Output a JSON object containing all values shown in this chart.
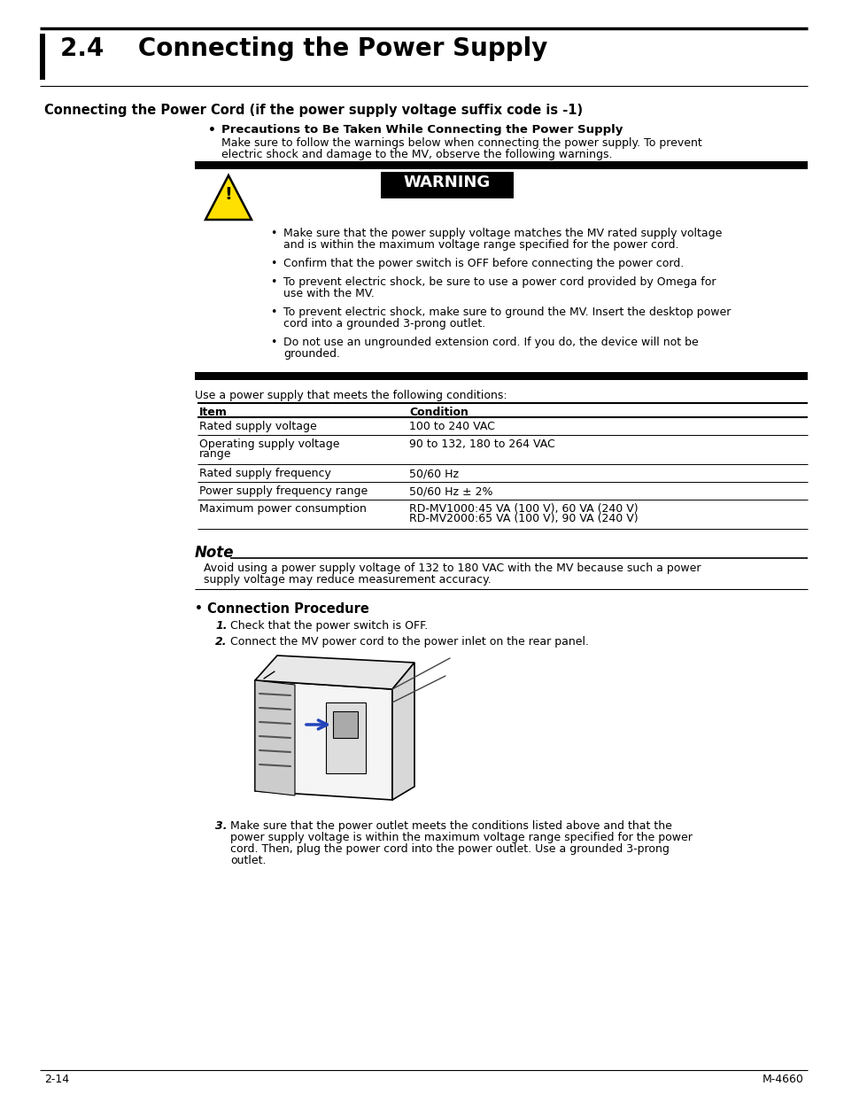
{
  "page_bg": "#ffffff",
  "section_title": "2.4    Connecting the Power Supply",
  "subsection_title": "Connecting the Power Cord (if the power supply voltage suffix code is -1)",
  "bullet_bold_1": "Precautions to Be Taken While Connecting the Power Supply",
  "intro_line1": "Make sure to follow the warnings below when connecting the power supply. To prevent",
  "intro_line2": "electric shock and damage to the MV, observe the following warnings.",
  "warning_label": "WARNING",
  "warning_bullets": [
    [
      "Make sure that the power supply voltage matches the MV rated supply voltage",
      "and is within the maximum voltage range specified for the power cord."
    ],
    [
      "Confirm that the power switch is OFF before connecting the power cord."
    ],
    [
      "To prevent electric shock, be sure to use a power cord provided by Omega for",
      "use with the MV."
    ],
    [
      "To prevent electric shock, make sure to ground the MV. Insert the desktop power",
      "cord into a grounded 3-prong outlet."
    ],
    [
      "Do not use an ungrounded extension cord. If you do, the device will not be",
      "grounded."
    ]
  ],
  "table_intro": "Use a power supply that meets the following conditions:",
  "table_headers": [
    "Item",
    "Condition"
  ],
  "table_rows": [
    [
      "Rated supply voltage",
      "100 to 240 VAC"
    ],
    [
      "Operating supply voltage\nrange",
      "90 to 132, 180 to 264 VAC"
    ],
    [
      "Rated supply frequency",
      "50/60 Hz"
    ],
    [
      "Power supply frequency range",
      "50/60 Hz ± 2%"
    ],
    [
      "Maximum power consumption",
      "RD-MV1000:45 VA (100 V), 60 VA (240 V)\nRD-MV2000:65 VA (100 V), 90 VA (240 V)"
    ]
  ],
  "note_title": "Note",
  "note_line1": "Avoid using a power supply voltage of 132 to 180 VAC with the MV because such a power",
  "note_line2": "supply voltage may reduce measurement accuracy.",
  "connection_procedure_title": "Connection Procedure",
  "step1": "Check that the power switch is OFF.",
  "step2": "Connect the MV power cord to the power inlet on the rear panel.",
  "step3_lines": [
    "Make sure that the power outlet meets the conditions listed above and that the",
    "power supply voltage is within the maximum voltage range specified for the power",
    "cord. Then, plug the power cord into the power outlet. Use a grounded 3-prong",
    "outlet."
  ],
  "footer_left": "2-14",
  "footer_right": "M-4660"
}
